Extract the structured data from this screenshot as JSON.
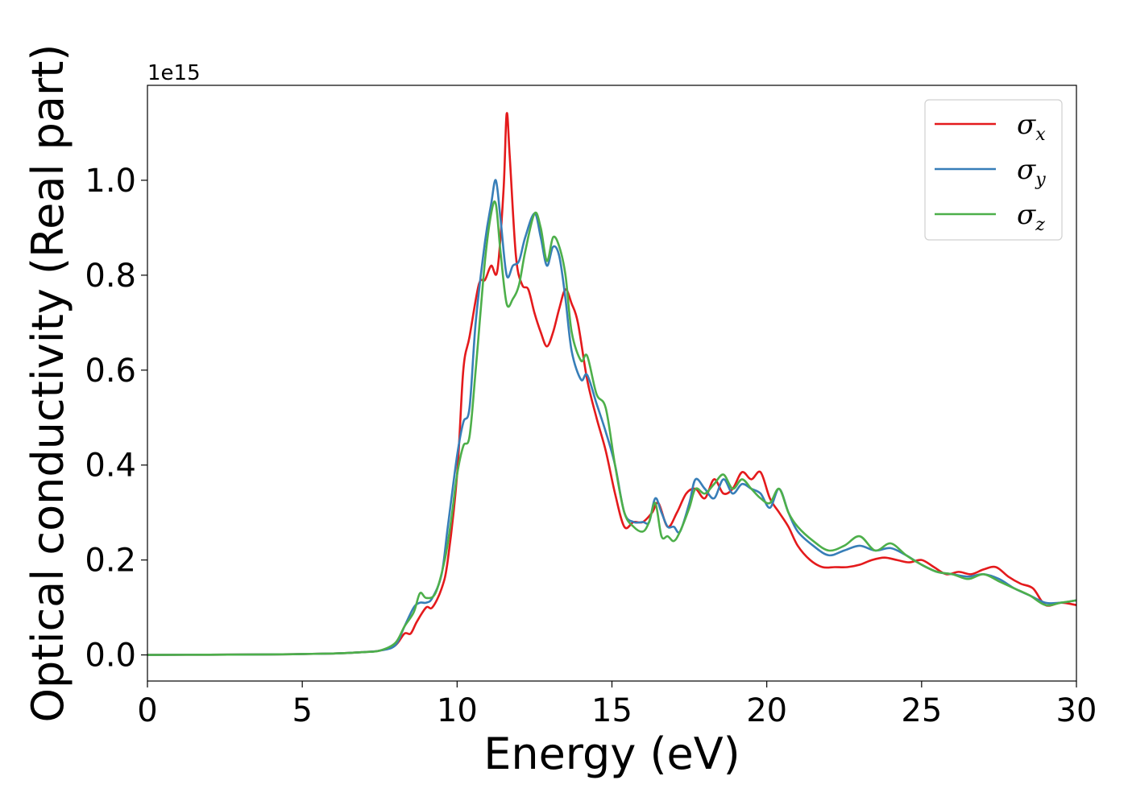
{
  "chart_data": {
    "type": "line",
    "xlabel": "Energy (eV)",
    "ylabel": "Optical conductivity (Real part)",
    "y_offset_label": "1e15",
    "xlim": [
      0,
      30
    ],
    "ylim": [
      -0.055,
      1.2
    ],
    "xticks": [
      0,
      5,
      10,
      15,
      20,
      25,
      30
    ],
    "xtick_labels": [
      "0",
      "5",
      "10",
      "15",
      "20",
      "25",
      "30"
    ],
    "yticks": [
      0.0,
      0.2,
      0.4,
      0.6,
      0.8,
      1.0
    ],
    "ytick_labels": [
      "0.0",
      "0.2",
      "0.4",
      "0.6",
      "0.8",
      "1.0"
    ],
    "grid": false,
    "legend_position": "top-right",
    "series": [
      {
        "name": "σ",
        "subscript": "x",
        "color": "#e41a1c",
        "x": [
          0,
          2,
          4,
          6,
          7,
          7.5,
          8,
          8.3,
          8.5,
          8.7,
          9,
          9.2,
          9.5,
          9.7,
          10,
          10.2,
          10.4,
          10.7,
          10.9,
          11.1,
          11.3,
          11.5,
          11.6,
          11.7,
          11.9,
          12.1,
          12.3,
          12.5,
          12.7,
          12.9,
          13.1,
          13.3,
          13.5,
          13.7,
          13.9,
          14.2,
          14.5,
          14.8,
          15.1,
          15.4,
          15.7,
          16,
          16.3,
          16.5,
          16.8,
          17.1,
          17.4,
          17.7,
          18,
          18.3,
          18.6,
          18.9,
          19.2,
          19.5,
          19.8,
          20.1,
          20.4,
          20.7,
          21,
          21.4,
          21.8,
          22.2,
          22.6,
          23,
          23.4,
          23.8,
          24.2,
          24.6,
          25,
          25.4,
          25.8,
          26.2,
          26.6,
          27,
          27.4,
          27.8,
          28.2,
          28.6,
          29,
          29.5,
          30
        ],
        "y": [
          0,
          0.0005,
          0.001,
          0.003,
          0.006,
          0.009,
          0.02,
          0.045,
          0.045,
          0.07,
          0.1,
          0.1,
          0.14,
          0.2,
          0.38,
          0.6,
          0.67,
          0.78,
          0.79,
          0.82,
          0.81,
          0.98,
          1.14,
          1.05,
          0.84,
          0.78,
          0.77,
          0.72,
          0.68,
          0.65,
          0.68,
          0.73,
          0.77,
          0.74,
          0.7,
          0.58,
          0.5,
          0.43,
          0.34,
          0.27,
          0.28,
          0.28,
          0.3,
          0.32,
          0.27,
          0.3,
          0.34,
          0.35,
          0.33,
          0.37,
          0.34,
          0.35,
          0.385,
          0.37,
          0.385,
          0.33,
          0.3,
          0.27,
          0.23,
          0.2,
          0.185,
          0.185,
          0.185,
          0.19,
          0.2,
          0.205,
          0.2,
          0.195,
          0.2,
          0.185,
          0.17,
          0.175,
          0.17,
          0.18,
          0.185,
          0.165,
          0.15,
          0.14,
          0.105,
          0.11,
          0.105
        ]
      },
      {
        "name": "σ",
        "subscript": "y",
        "color": "#377eb8",
        "x": [
          0,
          2,
          4,
          6,
          7,
          7.5,
          8,
          8.3,
          8.6,
          8.8,
          9,
          9.2,
          9.5,
          9.7,
          10,
          10.2,
          10.4,
          10.6,
          10.9,
          11.1,
          11.25,
          11.4,
          11.6,
          11.8,
          12,
          12.2,
          12.5,
          12.7,
          12.9,
          13.1,
          13.3,
          13.5,
          13.7,
          14,
          14.2,
          14.5,
          14.8,
          15.1,
          15.4,
          15.7,
          16,
          16.2,
          16.4,
          16.6,
          16.8,
          17,
          17.2,
          17.5,
          17.7,
          18,
          18.3,
          18.6,
          18.9,
          19.2,
          19.5,
          19.8,
          20.1,
          20.4,
          20.7,
          21,
          21.5,
          22,
          22.5,
          23,
          23.5,
          24,
          24.5,
          25,
          25.5,
          26,
          26.5,
          27,
          27.5,
          28,
          28.5,
          29,
          29.5,
          30
        ],
        "y": [
          0,
          0.0005,
          0.001,
          0.003,
          0.006,
          0.009,
          0.02,
          0.06,
          0.1,
          0.11,
          0.11,
          0.12,
          0.17,
          0.27,
          0.42,
          0.49,
          0.52,
          0.7,
          0.87,
          0.95,
          1.0,
          0.92,
          0.8,
          0.82,
          0.83,
          0.88,
          0.93,
          0.88,
          0.82,
          0.86,
          0.84,
          0.75,
          0.64,
          0.58,
          0.59,
          0.53,
          0.47,
          0.4,
          0.3,
          0.28,
          0.28,
          0.28,
          0.33,
          0.3,
          0.27,
          0.27,
          0.26,
          0.32,
          0.37,
          0.35,
          0.33,
          0.37,
          0.34,
          0.36,
          0.35,
          0.34,
          0.31,
          0.35,
          0.3,
          0.26,
          0.23,
          0.21,
          0.22,
          0.23,
          0.22,
          0.225,
          0.21,
          0.19,
          0.175,
          0.17,
          0.165,
          0.17,
          0.16,
          0.14,
          0.125,
          0.11,
          0.11,
          0.115
        ]
      },
      {
        "name": "σ",
        "subscript": "z",
        "color": "#4daf4a",
        "x": [
          0,
          2,
          4,
          6,
          7,
          7.5,
          8,
          8.3,
          8.6,
          8.8,
          9,
          9.3,
          9.6,
          9.8,
          10,
          10.2,
          10.4,
          10.6,
          10.9,
          11.1,
          11.25,
          11.4,
          11.6,
          11.8,
          12,
          12.2,
          12.5,
          12.7,
          12.9,
          13.1,
          13.3,
          13.5,
          13.7,
          14,
          14.2,
          14.5,
          14.8,
          15.1,
          15.4,
          15.7,
          16,
          16.2,
          16.4,
          16.6,
          16.8,
          17,
          17.2,
          17.5,
          17.7,
          18,
          18.3,
          18.6,
          18.9,
          19.2,
          19.5,
          19.8,
          20.1,
          20.4,
          20.7,
          21,
          21.5,
          22,
          22.5,
          23,
          23.5,
          24,
          24.5,
          25,
          25.5,
          26,
          26.5,
          27,
          27.5,
          28,
          28.5,
          29,
          29.5,
          30
        ],
        "y": [
          0,
          0.0005,
          0.001,
          0.003,
          0.006,
          0.009,
          0.025,
          0.06,
          0.09,
          0.13,
          0.12,
          0.13,
          0.2,
          0.28,
          0.38,
          0.44,
          0.46,
          0.6,
          0.83,
          0.93,
          0.95,
          0.85,
          0.74,
          0.75,
          0.78,
          0.85,
          0.93,
          0.9,
          0.83,
          0.88,
          0.86,
          0.8,
          0.68,
          0.62,
          0.63,
          0.55,
          0.52,
          0.4,
          0.3,
          0.27,
          0.26,
          0.28,
          0.32,
          0.25,
          0.25,
          0.24,
          0.26,
          0.31,
          0.35,
          0.34,
          0.36,
          0.38,
          0.35,
          0.37,
          0.35,
          0.33,
          0.32,
          0.35,
          0.3,
          0.27,
          0.24,
          0.22,
          0.23,
          0.25,
          0.22,
          0.235,
          0.21,
          0.19,
          0.175,
          0.17,
          0.16,
          0.17,
          0.155,
          0.14,
          0.125,
          0.105,
          0.11,
          0.115
        ]
      }
    ]
  }
}
